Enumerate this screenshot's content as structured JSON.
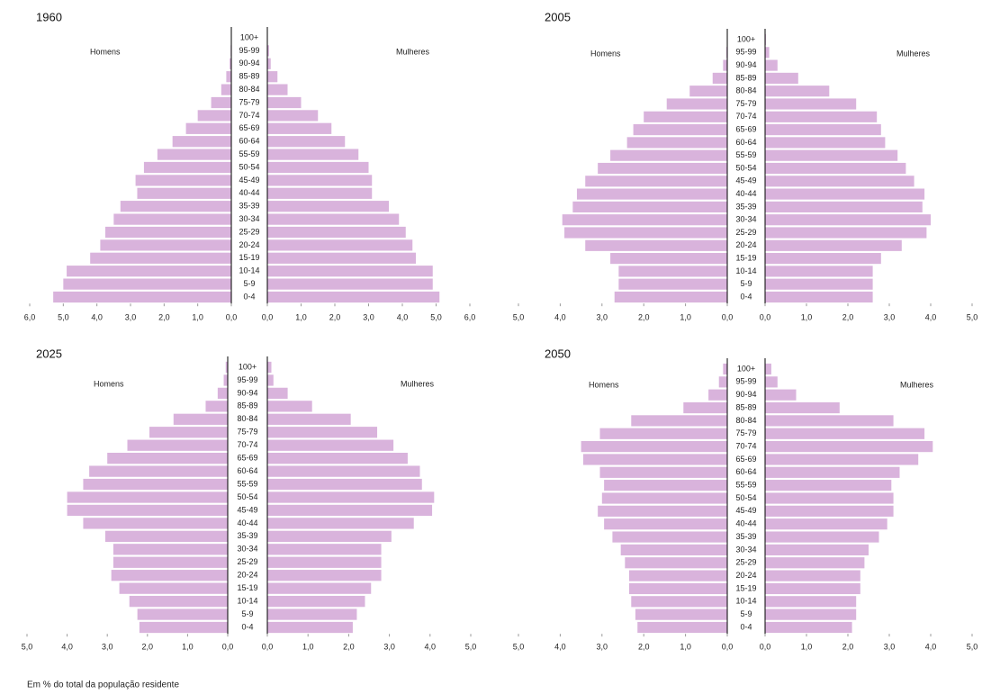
{
  "footnote": "Em % do total da população residente",
  "chart_data": [
    {
      "type": "pyramid",
      "title": "1960",
      "categories": [
        "0-4",
        "5-9",
        "10-14",
        "15-19",
        "20-24",
        "25-29",
        "30-34",
        "35-39",
        "40-44",
        "45-49",
        "50-54",
        "55-59",
        "60-64",
        "65-69",
        "70-74",
        "75-79",
        "80-84",
        "85-89",
        "90-94",
        "95-99",
        "100+"
      ],
      "series": [
        {
          "name": "Homens",
          "color": "#d9b3dc",
          "values": [
            5.3,
            5.0,
            4.9,
            4.2,
            3.9,
            3.75,
            3.5,
            3.3,
            2.8,
            2.85,
            2.6,
            2.2,
            1.75,
            1.35,
            1.0,
            0.6,
            0.3,
            0.15,
            0.05,
            0.02,
            0
          ]
        },
        {
          "name": "Mulheres",
          "color": "#d9b3dc",
          "values": [
            5.1,
            4.9,
            4.9,
            4.4,
            4.3,
            4.1,
            3.9,
            3.6,
            3.1,
            3.1,
            3.0,
            2.7,
            2.3,
            1.9,
            1.5,
            1.0,
            0.6,
            0.3,
            0.1,
            0.05,
            0
          ]
        }
      ],
      "xlim": [
        0,
        6
      ],
      "xticks": [
        {
          "value": 0,
          "label": "0,0"
        },
        {
          "value": 1,
          "label": "1,0"
        },
        {
          "value": 2,
          "label": "2,0"
        },
        {
          "value": 3,
          "label": "3,0"
        },
        {
          "value": 4,
          "label": "4,0"
        },
        {
          "value": 5,
          "label": "5,0"
        },
        {
          "value": 6,
          "label": "6,0"
        }
      ]
    },
    {
      "type": "pyramid",
      "title": "2005",
      "categories": [
        "0-4",
        "5-9",
        "10-14",
        "15-19",
        "20-24",
        "25-29",
        "30-34",
        "35-39",
        "40-44",
        "45-49",
        "50-54",
        "55-59",
        "60-64",
        "65-69",
        "70-74",
        "75-79",
        "80-84",
        "85-89",
        "90-94",
        "95-99",
        "100+"
      ],
      "series": [
        {
          "name": "Homens",
          "color": "#d9b3dc",
          "values": [
            2.7,
            2.6,
            2.6,
            2.8,
            3.4,
            3.9,
            3.95,
            3.7,
            3.6,
            3.4,
            3.1,
            2.8,
            2.4,
            2.25,
            2.0,
            1.45,
            0.9,
            0.35,
            0.1,
            0.02,
            0
          ]
        },
        {
          "name": "Mulheres",
          "color": "#d9b3dc",
          "values": [
            2.6,
            2.6,
            2.6,
            2.8,
            3.3,
            3.9,
            4.0,
            3.8,
            3.85,
            3.6,
            3.4,
            3.2,
            2.9,
            2.8,
            2.7,
            2.2,
            1.55,
            0.8,
            0.3,
            0.1,
            0.02
          ]
        }
      ],
      "xlim": [
        0,
        5
      ],
      "xticks": [
        {
          "value": 0,
          "label": "0,0"
        },
        {
          "value": 1,
          "label": "1,0"
        },
        {
          "value": 2,
          "label": "2,0"
        },
        {
          "value": 3,
          "label": "3,0"
        },
        {
          "value": 4,
          "label": "4,0"
        },
        {
          "value": 5,
          "label": "5,0"
        }
      ]
    },
    {
      "type": "pyramid",
      "title": "2025",
      "categories": [
        "0-4",
        "5-9",
        "10-14",
        "15-19",
        "20-24",
        "25-29",
        "30-34",
        "35-39",
        "40-44",
        "45-49",
        "50-54",
        "55-59",
        "60-64",
        "65-69",
        "70-74",
        "75-79",
        "80-84",
        "85-89",
        "90-94",
        "95-99",
        "100+"
      ],
      "series": [
        {
          "name": "Homens",
          "color": "#d9b3dc",
          "values": [
            2.2,
            2.25,
            2.45,
            2.7,
            2.9,
            2.85,
            2.85,
            3.05,
            3.6,
            4.0,
            4.0,
            3.6,
            3.45,
            3.0,
            2.5,
            1.95,
            1.35,
            0.55,
            0.25,
            0.1,
            0.05
          ]
        },
        {
          "name": "Mulheres",
          "color": "#d9b3dc",
          "values": [
            2.1,
            2.2,
            2.4,
            2.55,
            2.8,
            2.8,
            2.8,
            3.05,
            3.6,
            4.05,
            4.1,
            3.8,
            3.75,
            3.45,
            3.1,
            2.7,
            2.05,
            1.1,
            0.5,
            0.15,
            0.1
          ]
        }
      ],
      "xlim": [
        0,
        5
      ],
      "xticks": [
        {
          "value": 0,
          "label": "0,0"
        },
        {
          "value": 1,
          "label": "1,0"
        },
        {
          "value": 2,
          "label": "2,0"
        },
        {
          "value": 3,
          "label": "3,0"
        },
        {
          "value": 4,
          "label": "4,0"
        },
        {
          "value": 5,
          "label": "5,0"
        }
      ]
    },
    {
      "type": "pyramid",
      "title": "2050",
      "categories": [
        "0-4",
        "5-9",
        "10-14",
        "15-19",
        "20-24",
        "25-29",
        "30-34",
        "35-39",
        "40-44",
        "45-49",
        "50-54",
        "55-59",
        "60-64",
        "65-69",
        "70-74",
        "75-79",
        "80-84",
        "85-89",
        "90-94",
        "95-99",
        "100+"
      ],
      "series": [
        {
          "name": "Homens",
          "color": "#d9b3dc",
          "values": [
            2.15,
            2.2,
            2.3,
            2.35,
            2.35,
            2.45,
            2.55,
            2.75,
            2.95,
            3.1,
            3.0,
            2.95,
            3.05,
            3.45,
            3.5,
            3.05,
            2.3,
            1.05,
            0.45,
            0.2,
            0.1
          ]
        },
        {
          "name": "Mulheres",
          "color": "#d9b3dc",
          "values": [
            2.1,
            2.2,
            2.2,
            2.3,
            2.3,
            2.4,
            2.5,
            2.75,
            2.95,
            3.1,
            3.1,
            3.05,
            3.25,
            3.7,
            4.05,
            3.85,
            3.1,
            1.8,
            0.75,
            0.3,
            0.15
          ]
        }
      ],
      "xlim": [
        0,
        5
      ],
      "xticks": [
        {
          "value": 0,
          "label": "0,0"
        },
        {
          "value": 1,
          "label": "1,0"
        },
        {
          "value": 2,
          "label": "2,0"
        },
        {
          "value": 3,
          "label": "3,0"
        },
        {
          "value": 4,
          "label": "4,0"
        },
        {
          "value": 5,
          "label": "5,0"
        }
      ]
    }
  ]
}
